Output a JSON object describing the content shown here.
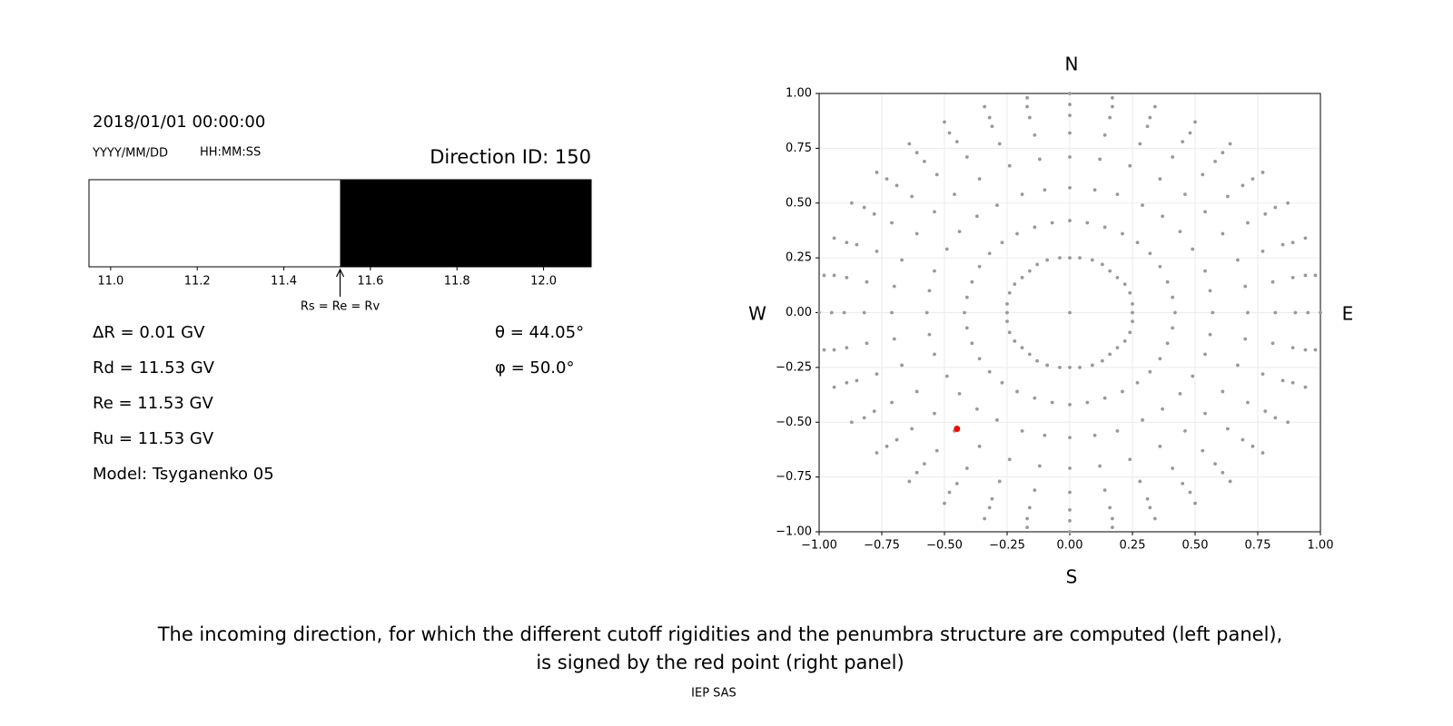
{
  "chart_data": [
    {
      "type": "bar",
      "date": "2018/01/01 00:00:00",
      "date_format": "YYYY/MM/DD",
      "time_format": "HH:MM:SS",
      "direction": "Direction ID: 150",
      "xlim": [
        10.95,
        12.11
      ],
      "xticks": [
        {
          "value": 11,
          "label": "11.0"
        },
        11.2,
        11.4,
        11.6,
        11.8,
        {
          "value": 12,
          "label": "12.0"
        }
      ],
      "segments": [
        {
          "start": 10.95,
          "end": 11.53,
          "color": "#ffffff"
        },
        {
          "start": 11.53,
          "end": 12.11,
          "color": "#000000"
        }
      ],
      "annotation": {
        "text": "Rs = Re = Rv",
        "x": 11.53
      },
      "parameters": [
        "ΔR = 0.01 GV",
        "Rd = 11.53 GV",
        "Re = 11.53 GV",
        "Ru = 11.53 GV",
        "Model: Tsyganenko 05"
      ],
      "angles": [
        "θ = 44.05°",
        "φ = 50.0°"
      ]
    },
    {
      "type": "scatter",
      "compass": {
        "north": "N",
        "south": "S",
        "west": "W",
        "east": "E"
      },
      "xlim": [
        -1,
        1
      ],
      "ylim": [
        -1,
        1
      ],
      "grid": true,
      "xticks": [
        {
          "value": -1,
          "label": "−1.00"
        },
        {
          "value": -0.75,
          "label": "−0.75"
        },
        {
          "value": -0.5,
          "label": "−0.50"
        },
        {
          "value": -0.25,
          "label": "−0.25"
        },
        {
          "value": 0,
          "label": "0.00"
        },
        {
          "value": 0.25,
          "label": "0.25"
        },
        {
          "value": 0.5,
          "label": "0.50"
        },
        {
          "value": 0.75,
          "label": "0.75"
        },
        {
          "value": 1,
          "label": "1.00"
        }
      ],
      "yticks": [
        {
          "value": -1,
          "label": "−1.00"
        },
        {
          "value": -0.75,
          "label": "−0.75"
        },
        {
          "value": -0.5,
          "label": "−0.50"
        },
        {
          "value": -0.25,
          "label": "−0.25"
        },
        {
          "value": 0,
          "label": "0.00"
        },
        {
          "value": 0.25,
          "label": "0.25"
        },
        {
          "value": 0.5,
          "label": "0.50"
        },
        {
          "value": 0.75,
          "label": "0.75"
        },
        {
          "value": 1,
          "label": "1.00"
        }
      ],
      "series": [
        {
          "color": "#999999",
          "x": [
            0,
            0.25,
            0.25,
            0.24,
            0.22,
            0.19,
            0.16,
            0.13,
            0.09,
            0.04,
            0,
            -0.04,
            -0.09,
            -0.13,
            -0.16,
            -0.19,
            -0.22,
            -0.24,
            -0.25,
            -0.25,
            -0.25,
            -0.24,
            -0.22,
            -0.19,
            -0.16,
            -0.13,
            -0.09,
            -0.04,
            0,
            0.04,
            0.09,
            0.13,
            0.16,
            0.19,
            0.22,
            0.24,
            0.25,
            0.42,
            0.41,
            0.39,
            0.36,
            0.32,
            0.27,
            0.21,
            0.14,
            0.07,
            0,
            -0.07,
            -0.14,
            -0.21,
            -0.27,
            -0.32,
            -0.36,
            -0.39,
            -0.41,
            -0.42,
            -0.41,
            -0.39,
            -0.36,
            -0.32,
            -0.27,
            -0.21,
            -0.14,
            -0.07,
            0,
            0.07,
            0.14,
            0.21,
            0.27,
            0.32,
            0.36,
            0.39,
            0.41,
            0.57,
            0.56,
            0.54,
            0.49,
            0.44,
            0.37,
            0.29,
            0.19,
            0.1,
            0,
            -0.1,
            -0.19,
            -0.29,
            -0.37,
            -0.44,
            -0.49,
            -0.54,
            -0.56,
            -0.57,
            -0.56,
            -0.54,
            -0.49,
            -0.44,
            -0.37,
            -0.29,
            -0.19,
            -0.1,
            0,
            0.1,
            0.19,
            0.29,
            0.37,
            0.44,
            0.49,
            0.54,
            0.56,
            0.71,
            0.7,
            0.67,
            0.61,
            0.54,
            0.46,
            0.36,
            0.24,
            0.12,
            0,
            -0.12,
            -0.24,
            -0.36,
            -0.46,
            -0.54,
            -0.61,
            -0.67,
            -0.7,
            -0.71,
            -0.7,
            -0.67,
            -0.61,
            -0.54,
            -0.46,
            -0.36,
            -0.24,
            -0.12,
            0,
            0.12,
            0.24,
            0.36,
            0.46,
            0.54,
            0.61,
            0.67,
            0.7,
            0.82,
            0.81,
            0.77,
            0.71,
            0.63,
            0.53,
            0.41,
            0.28,
            0.14,
            0,
            -0.14,
            -0.28,
            -0.41,
            -0.53,
            -0.63,
            -0.71,
            -0.77,
            -0.81,
            -0.82,
            -0.81,
            -0.77,
            -0.71,
            -0.63,
            -0.53,
            -0.41,
            -0.28,
            -0.14,
            0,
            0.14,
            0.28,
            0.41,
            0.53,
            0.63,
            0.71,
            0.77,
            0.81,
            0.9,
            0.89,
            0.85,
            0.78,
            0.69,
            0.58,
            0.45,
            0.31,
            0.16,
            0,
            -0.16,
            -0.31,
            -0.45,
            -0.58,
            -0.69,
            -0.78,
            -0.85,
            -0.89,
            -0.9,
            -0.89,
            -0.85,
            -0.78,
            -0.69,
            -0.58,
            -0.45,
            -0.31,
            -0.16,
            0,
            0.16,
            0.31,
            0.45,
            0.58,
            0.69,
            0.78,
            0.85,
            0.89,
            0.95,
            0.94,
            0.89,
            0.82,
            0.73,
            0.61,
            0.48,
            0.32,
            0.17,
            0,
            -0.17,
            -0.32,
            -0.48,
            -0.61,
            -0.73,
            -0.82,
            -0.89,
            -0.94,
            -0.95,
            -0.94,
            -0.89,
            -0.82,
            -0.73,
            -0.61,
            -0.48,
            -0.32,
            -0.17,
            0,
            0.17,
            0.32,
            0.48,
            0.61,
            0.73,
            0.82,
            0.89,
            0.94,
            1,
            0.98,
            0.94,
            0.87,
            0.77,
            0.64,
            0.5,
            0.34,
            0.17,
            0,
            -0.17,
            -0.34,
            -0.5,
            -0.64,
            -0.77,
            -0.87,
            -0.94,
            -0.98,
            -1,
            -0.98,
            -0.94,
            -0.87,
            -0.77,
            -0.64,
            -0.5,
            -0.34,
            -0.17,
            0,
            0.17,
            0.34,
            0.5,
            0.64,
            0.77,
            0.87,
            0.94,
            0.98
          ],
          "y": [
            0,
            0,
            0.04,
            0.09,
            0.13,
            0.16,
            0.19,
            0.22,
            0.24,
            0.25,
            0.25,
            0.25,
            0.24,
            0.22,
            0.19,
            0.16,
            0.13,
            0.09,
            0.04,
            0,
            -0.04,
            -0.09,
            -0.13,
            -0.16,
            -0.19,
            -0.22,
            -0.24,
            -0.25,
            -0.25,
            -0.25,
            -0.24,
            -0.22,
            -0.19,
            -0.16,
            -0.13,
            -0.09,
            -0.04,
            0,
            0.07,
            0.14,
            0.21,
            0.27,
            0.32,
            0.36,
            0.39,
            0.41,
            0.42,
            0.41,
            0.39,
            0.36,
            0.32,
            0.27,
            0.21,
            0.14,
            0.07,
            0,
            -0.07,
            -0.14,
            -0.21,
            -0.27,
            -0.32,
            -0.36,
            -0.39,
            -0.41,
            -0.42,
            -0.41,
            -0.39,
            -0.36,
            -0.32,
            -0.27,
            -0.21,
            -0.14,
            -0.07,
            0,
            0.1,
            0.19,
            0.29,
            0.37,
            0.44,
            0.49,
            0.54,
            0.56,
            0.57,
            0.56,
            0.54,
            0.49,
            0.44,
            0.37,
            0.29,
            0.19,
            0.1,
            0,
            -0.1,
            -0.19,
            -0.29,
            -0.37,
            -0.44,
            -0.49,
            -0.54,
            -0.56,
            -0.57,
            -0.56,
            -0.54,
            -0.49,
            -0.44,
            -0.37,
            -0.29,
            -0.19,
            -0.1,
            0,
            0.12,
            0.24,
            0.36,
            0.46,
            0.54,
            0.61,
            0.67,
            0.7,
            0.71,
            0.7,
            0.67,
            0.61,
            0.54,
            0.46,
            0.36,
            0.24,
            0.12,
            0,
            -0.12,
            -0.24,
            -0.36,
            -0.46,
            -0.54,
            -0.61,
            -0.67,
            -0.7,
            -0.71,
            -0.7,
            -0.67,
            -0.61,
            -0.54,
            -0.46,
            -0.36,
            -0.24,
            -0.12,
            0,
            0.14,
            0.28,
            0.41,
            0.53,
            0.63,
            0.71,
            0.77,
            0.81,
            0.82,
            0.81,
            0.77,
            0.71,
            0.63,
            0.53,
            0.41,
            0.28,
            0.14,
            0,
            -0.14,
            -0.28,
            -0.41,
            -0.53,
            -0.63,
            -0.71,
            -0.77,
            -0.81,
            -0.82,
            -0.81,
            -0.77,
            -0.71,
            -0.63,
            -0.53,
            -0.41,
            -0.28,
            -0.14,
            0,
            0.16,
            0.31,
            0.45,
            0.58,
            0.69,
            0.78,
            0.85,
            0.89,
            0.9,
            0.89,
            0.85,
            0.78,
            0.69,
            0.58,
            0.45,
            0.31,
            0.16,
            0,
            -0.16,
            -0.31,
            -0.45,
            -0.58,
            -0.69,
            -0.78,
            -0.85,
            -0.89,
            -0.9,
            -0.89,
            -0.85,
            -0.78,
            -0.69,
            -0.58,
            -0.45,
            -0.31,
            -0.16,
            0,
            0.17,
            0.32,
            0.48,
            0.61,
            0.73,
            0.82,
            0.89,
            0.94,
            0.95,
            0.94,
            0.89,
            0.82,
            0.73,
            0.61,
            0.48,
            0.32,
            0.17,
            0,
            -0.17,
            -0.32,
            -0.48,
            -0.61,
            -0.73,
            -0.82,
            -0.89,
            -0.94,
            -0.95,
            -0.94,
            -0.89,
            -0.82,
            -0.73,
            -0.61,
            -0.48,
            -0.32,
            -0.17,
            0,
            0.17,
            0.34,
            0.5,
            0.64,
            0.77,
            0.87,
            0.94,
            0.98,
            1,
            0.98,
            0.94,
            0.87,
            0.77,
            0.64,
            0.5,
            0.34,
            0.17,
            0,
            -0.17,
            -0.34,
            -0.5,
            -0.64,
            -0.77,
            -0.87,
            -0.94,
            -0.98,
            -1,
            -0.98,
            -0.94,
            -0.87,
            -0.77,
            -0.64,
            -0.5,
            -0.34,
            -0.17
          ]
        },
        {
          "color": "#ff0000",
          "x": [
            -0.45
          ],
          "y": [
            -0.53
          ]
        }
      ]
    }
  ],
  "caption": [
    "The incoming direction, for which the different cutoff rigidities and the penumbra structure are computed (left panel),",
    "is signed by the red point (right panel)"
  ],
  "footer": "IEP SAS"
}
